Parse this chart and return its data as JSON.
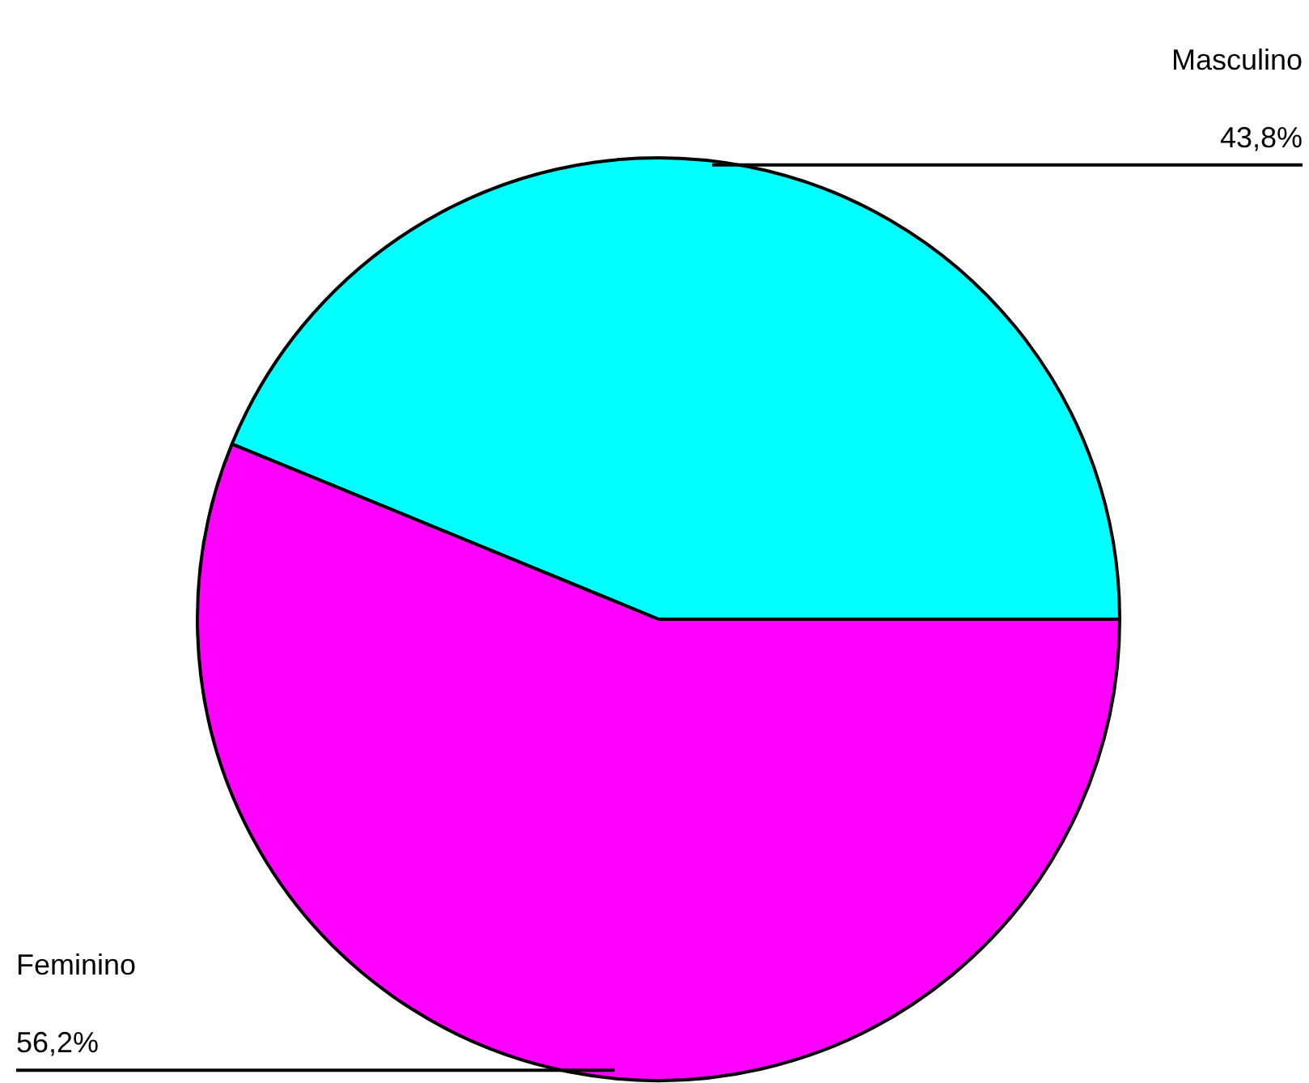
{
  "chart_data": {
    "type": "pie",
    "categories": [
      "Masculino",
      "Feminino"
    ],
    "values": [
      43.8,
      56.2
    ],
    "value_labels": [
      "43,8%",
      "56,2%"
    ],
    "colors": [
      "#00ffff",
      "#ff00ff"
    ],
    "legend": false
  }
}
